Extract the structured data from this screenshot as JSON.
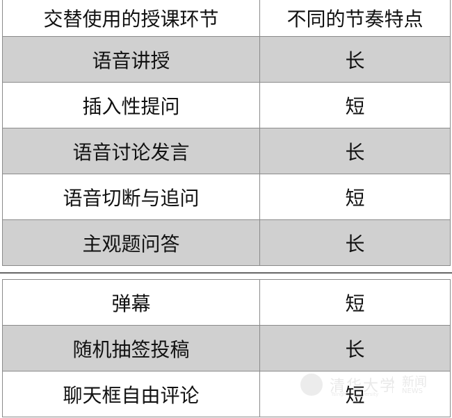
{
  "header": {
    "col1": "交替使用的授课环节",
    "col2": "不同的节奏特点"
  },
  "table1": [
    {
      "segment": "语音讲授",
      "rhythm": "长"
    },
    {
      "segment": "插入性提问",
      "rhythm": "短"
    },
    {
      "segment": "语音讨论发言",
      "rhythm": "长"
    },
    {
      "segment": "语音切断与追问",
      "rhythm": "短"
    },
    {
      "segment": "主观题问答",
      "rhythm": "长"
    }
  ],
  "table2": [
    {
      "segment": "弹幕",
      "rhythm": "短"
    },
    {
      "segment": "随机抽签投稿",
      "rhythm": "长"
    },
    {
      "segment": "聊天框自由评论",
      "rhythm": "短"
    }
  ],
  "watermark": {
    "name_cn": "清华大学",
    "name_en": "Tsinghua University",
    "news_cn": "新闻",
    "news_en": "NEWS"
  },
  "colors": {
    "shaded_row": "#d0d0d0",
    "border": "#8a8a8a"
  }
}
